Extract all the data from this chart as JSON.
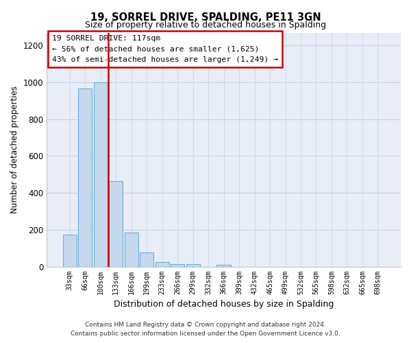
{
  "title": "19, SORREL DRIVE, SPALDING, PE11 3GN",
  "subtitle": "Size of property relative to detached houses in Spalding",
  "xlabel": "Distribution of detached houses by size in Spalding",
  "ylabel": "Number of detached properties",
  "bar_labels": [
    "33sqm",
    "66sqm",
    "100sqm",
    "133sqm",
    "166sqm",
    "199sqm",
    "233sqm",
    "266sqm",
    "299sqm",
    "332sqm",
    "366sqm",
    "399sqm",
    "432sqm",
    "465sqm",
    "499sqm",
    "532sqm",
    "565sqm",
    "598sqm",
    "632sqm",
    "665sqm",
    "698sqm"
  ],
  "bar_values": [
    175,
    965,
    1000,
    465,
    185,
    75,
    25,
    15,
    12,
    0,
    10,
    0,
    0,
    0,
    0,
    0,
    0,
    0,
    0,
    0,
    0
  ],
  "bar_color": "#c5d8ee",
  "bar_edge_color": "#6baed6",
  "vline_color": "#cc0000",
  "vline_pos": 2.5,
  "ylim": [
    0,
    1270
  ],
  "yticks": [
    0,
    200,
    400,
    600,
    800,
    1000,
    1200
  ],
  "annotation_text": "19 SORREL DRIVE: 117sqm\n← 56% of detached houses are smaller (1,625)\n43% of semi-detached houses are larger (1,249) →",
  "annotation_box_color": "#ffffff",
  "annotation_box_edge": "#cc0000",
  "footer_line1": "Contains HM Land Registry data © Crown copyright and database right 2024.",
  "footer_line2": "Contains public sector information licensed under the Open Government Licence v3.0.",
  "background_color": "#ffffff",
  "plot_bg_color": "#e8eef8",
  "grid_color": "#c8d0e0"
}
